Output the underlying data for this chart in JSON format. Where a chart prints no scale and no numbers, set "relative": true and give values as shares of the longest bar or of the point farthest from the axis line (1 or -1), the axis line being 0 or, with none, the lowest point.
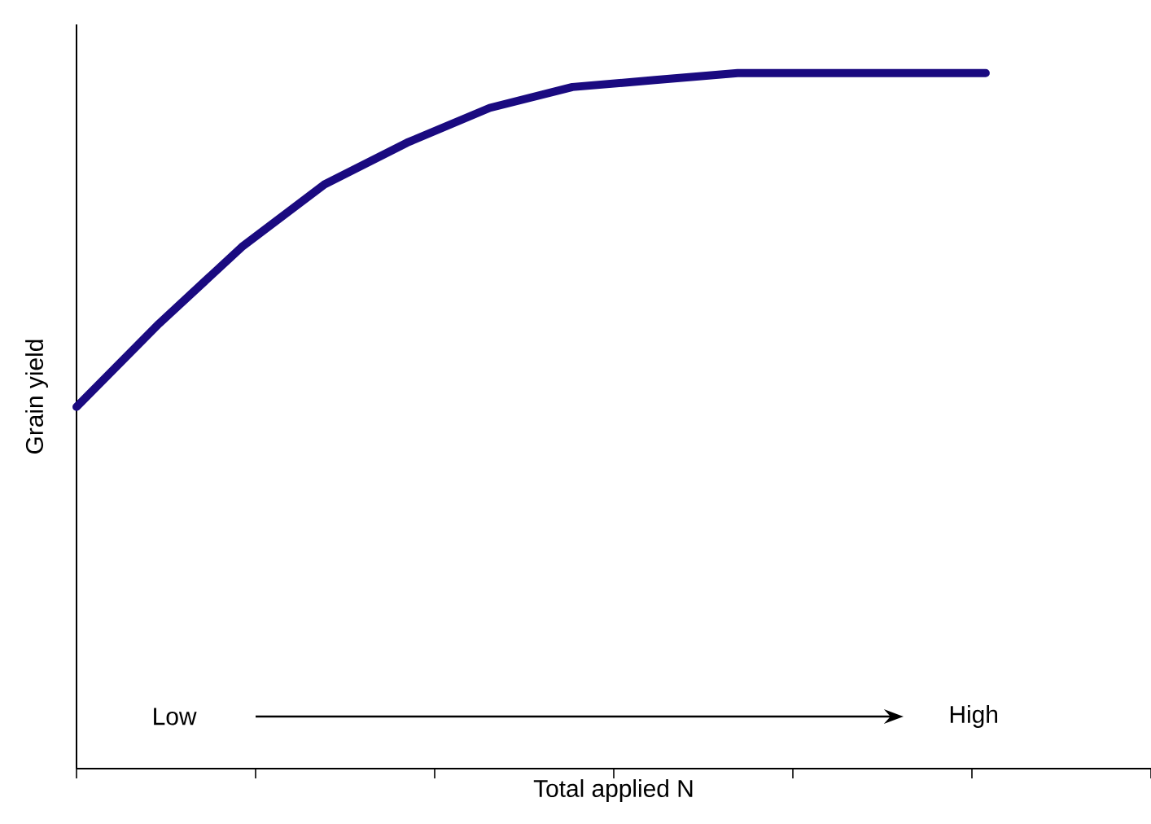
{
  "chart_data": {
    "type": "line",
    "relative": true,
    "xlabel": "Total applied N",
    "ylabel": "Grain yield",
    "categories": [
      null,
      null,
      null,
      null,
      null,
      null,
      null,
      null,
      null,
      null,
      null,
      null
    ],
    "series": [
      {
        "color": "#1a0a80",
        "values": [
          0.52,
          0.64,
          0.75,
          0.84,
          0.9,
          0.95,
          0.98,
          0.99,
          1,
          1,
          1,
          1
        ]
      }
    ],
    "annotations": [
      "Low",
      "High"
    ],
    "marker": "none",
    "line_style": "solid",
    "grid": false
  }
}
